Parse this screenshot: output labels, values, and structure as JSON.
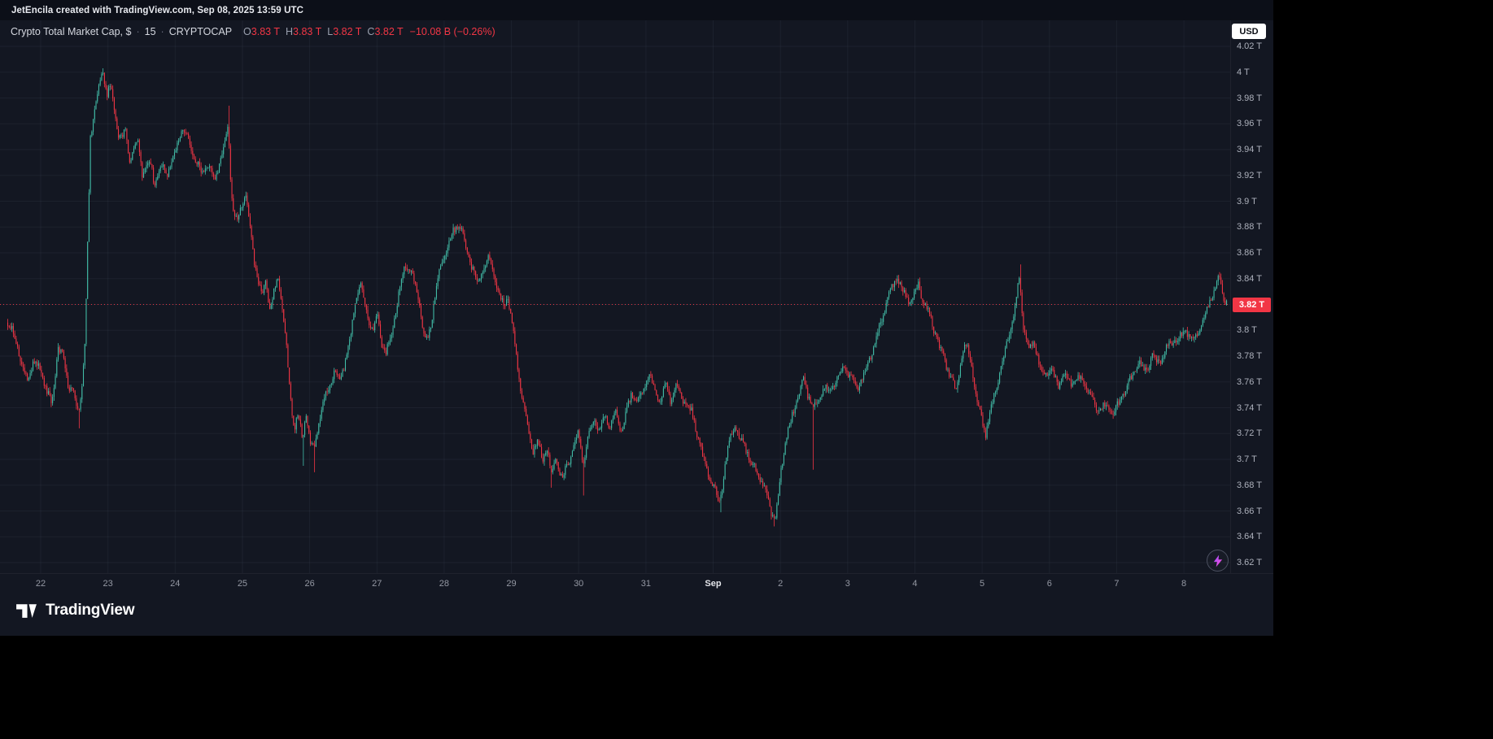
{
  "attribution": "JetEncila created with TradingView.com, Sep 08, 2025 13:59 UTC",
  "header": {
    "title": "Crypto Total Market Cap, $",
    "dot": "·",
    "interval": "15",
    "exchange": "CRYPTOCAP",
    "ohlc": {
      "o_label": "O",
      "o_value": "3.83 T",
      "h_label": "H",
      "h_value": "3.83 T",
      "l_label": "L",
      "l_value": "3.82 T",
      "c_label": "C",
      "c_value": "3.82 T",
      "change": "−10.08 B (−0.26%)"
    }
  },
  "currency_button": "USD",
  "footer": {
    "brand": "TradingView"
  },
  "chart_data": {
    "type": "candlestick",
    "title": "Crypto Total Market Cap, $",
    "symbol": "CRYPTOCAP",
    "interval_minutes": 15,
    "unit": "T",
    "ohlc": {
      "open": 3.83,
      "high": 3.83,
      "low": 3.82,
      "close": 3.82
    },
    "change_abs": "−10.08 B",
    "change_pct": "−0.26%",
    "last_price": 3.82,
    "last_price_label": "3.82 T",
    "colors": {
      "background": "#131722",
      "up": "#42bda8",
      "down": "#f23645",
      "price_line": "#f23645",
      "grid": "rgba(151,164,196,0.07)",
      "axis_text": "#adb1bc",
      "chip_bg": "#f23645"
    },
    "y_axis": {
      "min": 3.6,
      "max": 4.035,
      "tick_step": 0.02,
      "tick_values": [
        4.02,
        4.0,
        3.98,
        3.96,
        3.94,
        3.92,
        3.9,
        3.88,
        3.86,
        3.84,
        3.82,
        3.8,
        3.78,
        3.76,
        3.74,
        3.72,
        3.7,
        3.68,
        3.66,
        3.64,
        3.62
      ],
      "tick_labels": [
        "4.02 T",
        "4 T",
        "3.98 T",
        "3.96 T",
        "3.94 T",
        "3.92 T",
        "3.9 T",
        "3.88 T",
        "3.86 T",
        "3.84 T",
        "3.82 T",
        "3.8 T",
        "3.78 T",
        "3.76 T",
        "3.74 T",
        "3.72 T",
        "3.7 T",
        "3.68 T",
        "3.66 T",
        "3.64 T",
        "3.62 T"
      ]
    },
    "x_axis": {
      "tick_labels": [
        "22",
        "23",
        "24",
        "25",
        "26",
        "27",
        "28",
        "29",
        "30",
        "31",
        "Sep",
        "2",
        "3",
        "4",
        "5",
        "6",
        "7",
        "8"
      ],
      "emphasized_label": "Sep"
    },
    "candles_per_day": 48,
    "t_range": [
      -0.5,
      17.65
    ],
    "price_waypoints": [
      [
        -0.5,
        3.806
      ],
      [
        -0.42,
        3.8
      ],
      [
        -0.34,
        3.788
      ],
      [
        -0.26,
        3.772
      ],
      [
        -0.18,
        3.762
      ],
      [
        -0.1,
        3.775
      ],
      [
        0.0,
        3.772
      ],
      [
        0.1,
        3.752
      ],
      [
        0.18,
        3.744
      ],
      [
        0.27,
        3.786
      ],
      [
        0.35,
        3.778
      ],
      [
        0.42,
        3.758
      ],
      [
        0.5,
        3.752
      ],
      [
        0.57,
        3.736
      ],
      [
        0.62,
        3.752
      ],
      [
        0.67,
        3.79
      ],
      [
        0.71,
        3.868
      ],
      [
        0.75,
        3.95
      ],
      [
        0.8,
        3.968
      ],
      [
        0.85,
        3.982
      ],
      [
        0.9,
        3.996
      ],
      [
        0.94,
        3.998
      ],
      [
        1.0,
        3.984
      ],
      [
        1.05,
        3.99
      ],
      [
        1.1,
        3.972
      ],
      [
        1.16,
        3.952
      ],
      [
        1.22,
        3.948
      ],
      [
        1.27,
        3.956
      ],
      [
        1.33,
        3.932
      ],
      [
        1.4,
        3.94
      ],
      [
        1.46,
        3.946
      ],
      [
        1.52,
        3.922
      ],
      [
        1.58,
        3.93
      ],
      [
        1.65,
        3.928
      ],
      [
        1.7,
        3.914
      ],
      [
        1.76,
        3.922
      ],
      [
        1.83,
        3.926
      ],
      [
        1.9,
        3.922
      ],
      [
        1.96,
        3.93
      ],
      [
        2.04,
        3.944
      ],
      [
        2.12,
        3.956
      ],
      [
        2.18,
        3.95
      ],
      [
        2.25,
        3.94
      ],
      [
        2.32,
        3.932
      ],
      [
        2.4,
        3.92
      ],
      [
        2.47,
        3.93
      ],
      [
        2.54,
        3.924
      ],
      [
        2.6,
        3.916
      ],
      [
        2.67,
        3.93
      ],
      [
        2.74,
        3.944
      ],
      [
        2.8,
        3.962
      ],
      [
        2.84,
        3.912
      ],
      [
        2.88,
        3.892
      ],
      [
        2.94,
        3.886
      ],
      [
        3.0,
        3.898
      ],
      [
        3.06,
        3.906
      ],
      [
        3.12,
        3.88
      ],
      [
        3.18,
        3.856
      ],
      [
        3.24,
        3.84
      ],
      [
        3.3,
        3.826
      ],
      [
        3.36,
        3.842
      ],
      [
        3.42,
        3.814
      ],
      [
        3.48,
        3.83
      ],
      [
        3.54,
        3.842
      ],
      [
        3.6,
        3.82
      ],
      [
        3.66,
        3.79
      ],
      [
        3.72,
        3.75
      ],
      [
        3.78,
        3.724
      ],
      [
        3.84,
        3.736
      ],
      [
        3.9,
        3.716
      ],
      [
        3.96,
        3.734
      ],
      [
        4.02,
        3.712
      ],
      [
        4.08,
        3.706
      ],
      [
        4.14,
        3.728
      ],
      [
        4.22,
        3.746
      ],
      [
        4.3,
        3.754
      ],
      [
        4.38,
        3.77
      ],
      [
        4.46,
        3.76
      ],
      [
        4.54,
        3.776
      ],
      [
        4.62,
        3.796
      ],
      [
        4.7,
        3.824
      ],
      [
        4.76,
        3.838
      ],
      [
        4.82,
        3.82
      ],
      [
        4.9,
        3.806
      ],
      [
        4.96,
        3.8
      ],
      [
        5.02,
        3.812
      ],
      [
        5.08,
        3.79
      ],
      [
        5.15,
        3.782
      ],
      [
        5.22,
        3.796
      ],
      [
        5.3,
        3.818
      ],
      [
        5.38,
        3.84
      ],
      [
        5.44,
        3.852
      ],
      [
        5.52,
        3.844
      ],
      [
        5.58,
        3.836
      ],
      [
        5.64,
        3.822
      ],
      [
        5.7,
        3.798
      ],
      [
        5.76,
        3.792
      ],
      [
        5.83,
        3.81
      ],
      [
        5.9,
        3.836
      ],
      [
        5.96,
        3.85
      ],
      [
        6.04,
        3.862
      ],
      [
        6.12,
        3.874
      ],
      [
        6.2,
        3.882
      ],
      [
        6.28,
        3.876
      ],
      [
        6.35,
        3.862
      ],
      [
        6.42,
        3.85
      ],
      [
        6.5,
        3.838
      ],
      [
        6.58,
        3.846
      ],
      [
        6.66,
        3.856
      ],
      [
        6.74,
        3.844
      ],
      [
        6.82,
        3.828
      ],
      [
        6.9,
        3.818
      ],
      [
        6.96,
        3.826
      ],
      [
        7.02,
        3.806
      ],
      [
        7.1,
        3.772
      ],
      [
        7.18,
        3.744
      ],
      [
        7.26,
        3.722
      ],
      [
        7.33,
        3.706
      ],
      [
        7.4,
        3.716
      ],
      [
        7.47,
        3.7
      ],
      [
        7.54,
        3.71
      ],
      [
        7.6,
        3.688
      ],
      [
        7.68,
        3.702
      ],
      [
        7.76,
        3.684
      ],
      [
        7.84,
        3.696
      ],
      [
        7.92,
        3.706
      ],
      [
        8.0,
        3.72
      ],
      [
        8.08,
        3.698
      ],
      [
        8.16,
        3.718
      ],
      [
        8.24,
        3.732
      ],
      [
        8.32,
        3.722
      ],
      [
        8.4,
        3.734
      ],
      [
        8.48,
        3.726
      ],
      [
        8.56,
        3.736
      ],
      [
        8.64,
        3.722
      ],
      [
        8.72,
        3.736
      ],
      [
        8.8,
        3.752
      ],
      [
        8.88,
        3.744
      ],
      [
        8.96,
        3.752
      ],
      [
        9.06,
        3.766
      ],
      [
        9.14,
        3.752
      ],
      [
        9.22,
        3.744
      ],
      [
        9.3,
        3.758
      ],
      [
        9.38,
        3.746
      ],
      [
        9.46,
        3.756
      ],
      [
        9.54,
        3.748
      ],
      [
        9.62,
        3.742
      ],
      [
        9.7,
        3.736
      ],
      [
        9.78,
        3.718
      ],
      [
        9.86,
        3.702
      ],
      [
        9.94,
        3.69
      ],
      [
        10.02,
        3.678
      ],
      [
        10.1,
        3.666
      ],
      [
        10.16,
        3.684
      ],
      [
        10.24,
        3.712
      ],
      [
        10.32,
        3.726
      ],
      [
        10.4,
        3.716
      ],
      [
        10.48,
        3.712
      ],
      [
        10.56,
        3.698
      ],
      [
        10.64,
        3.692
      ],
      [
        10.72,
        3.684
      ],
      [
        10.8,
        3.676
      ],
      [
        10.88,
        3.658
      ],
      [
        10.94,
        3.654
      ],
      [
        11.02,
        3.692
      ],
      [
        11.1,
        3.718
      ],
      [
        11.18,
        3.732
      ],
      [
        11.26,
        3.748
      ],
      [
        11.34,
        3.762
      ],
      [
        11.42,
        3.75
      ],
      [
        11.5,
        3.74
      ],
      [
        11.58,
        3.746
      ],
      [
        11.66,
        3.758
      ],
      [
        11.74,
        3.75
      ],
      [
        11.82,
        3.76
      ],
      [
        11.9,
        3.768
      ],
      [
        11.96,
        3.772
      ],
      [
        12.05,
        3.764
      ],
      [
        12.15,
        3.754
      ],
      [
        12.25,
        3.766
      ],
      [
        12.35,
        3.78
      ],
      [
        12.45,
        3.796
      ],
      [
        12.55,
        3.814
      ],
      [
        12.65,
        3.832
      ],
      [
        12.75,
        3.84
      ],
      [
        12.85,
        3.828
      ],
      [
        12.93,
        3.82
      ],
      [
        13.0,
        3.828
      ],
      [
        13.06,
        3.836
      ],
      [
        13.14,
        3.822
      ],
      [
        13.22,
        3.812
      ],
      [
        13.3,
        3.8
      ],
      [
        13.38,
        3.786
      ],
      [
        13.46,
        3.776
      ],
      [
        13.54,
        3.764
      ],
      [
        13.62,
        3.754
      ],
      [
        13.7,
        3.778
      ],
      [
        13.78,
        3.79
      ],
      [
        13.86,
        3.772
      ],
      [
        13.94,
        3.744
      ],
      [
        14.0,
        3.732
      ],
      [
        14.06,
        3.72
      ],
      [
        14.14,
        3.74
      ],
      [
        14.22,
        3.754
      ],
      [
        14.3,
        3.772
      ],
      [
        14.38,
        3.792
      ],
      [
        14.46,
        3.806
      ],
      [
        14.52,
        3.826
      ],
      [
        14.56,
        3.843
      ],
      [
        14.62,
        3.804
      ],
      [
        14.7,
        3.784
      ],
      [
        14.78,
        3.792
      ],
      [
        14.86,
        3.774
      ],
      [
        14.94,
        3.764
      ],
      [
        15.04,
        3.77
      ],
      [
        15.14,
        3.757
      ],
      [
        15.24,
        3.766
      ],
      [
        15.34,
        3.758
      ],
      [
        15.44,
        3.763
      ],
      [
        15.54,
        3.757
      ],
      [
        15.64,
        3.747
      ],
      [
        15.74,
        3.737
      ],
      [
        15.84,
        3.742
      ],
      [
        15.94,
        3.736
      ],
      [
        16.04,
        3.742
      ],
      [
        16.14,
        3.754
      ],
      [
        16.24,
        3.764
      ],
      [
        16.34,
        3.776
      ],
      [
        16.44,
        3.768
      ],
      [
        16.54,
        3.78
      ],
      [
        16.64,
        3.774
      ],
      [
        16.74,
        3.786
      ],
      [
        16.84,
        3.79
      ],
      [
        16.94,
        3.794
      ],
      [
        17.04,
        3.8
      ],
      [
        17.14,
        3.792
      ],
      [
        17.24,
        3.802
      ],
      [
        17.34,
        3.814
      ],
      [
        17.44,
        3.828
      ],
      [
        17.53,
        3.84
      ],
      [
        17.6,
        3.826
      ],
      [
        17.65,
        3.821
      ]
    ],
    "wick_events": [
      {
        "t": 0.57,
        "price": 3.724,
        "side": "low"
      },
      {
        "t": 0.92,
        "price": 4.003,
        "side": "high"
      },
      {
        "t": 2.8,
        "price": 3.974,
        "side": "high"
      },
      {
        "t": 3.9,
        "price": 3.695,
        "side": "low"
      },
      {
        "t": 4.07,
        "price": 3.69,
        "side": "low"
      },
      {
        "t": 7.6,
        "price": 3.678,
        "side": "low"
      },
      {
        "t": 8.08,
        "price": 3.672,
        "side": "low"
      },
      {
        "t": 10.11,
        "price": 3.659,
        "side": "low"
      },
      {
        "t": 10.91,
        "price": 3.648,
        "side": "low"
      },
      {
        "t": 11.48,
        "price": 3.692,
        "side": "low"
      },
      {
        "t": 14.57,
        "price": 3.851,
        "side": "high"
      },
      {
        "t": 17.54,
        "price": 3.845,
        "side": "high"
      }
    ]
  }
}
